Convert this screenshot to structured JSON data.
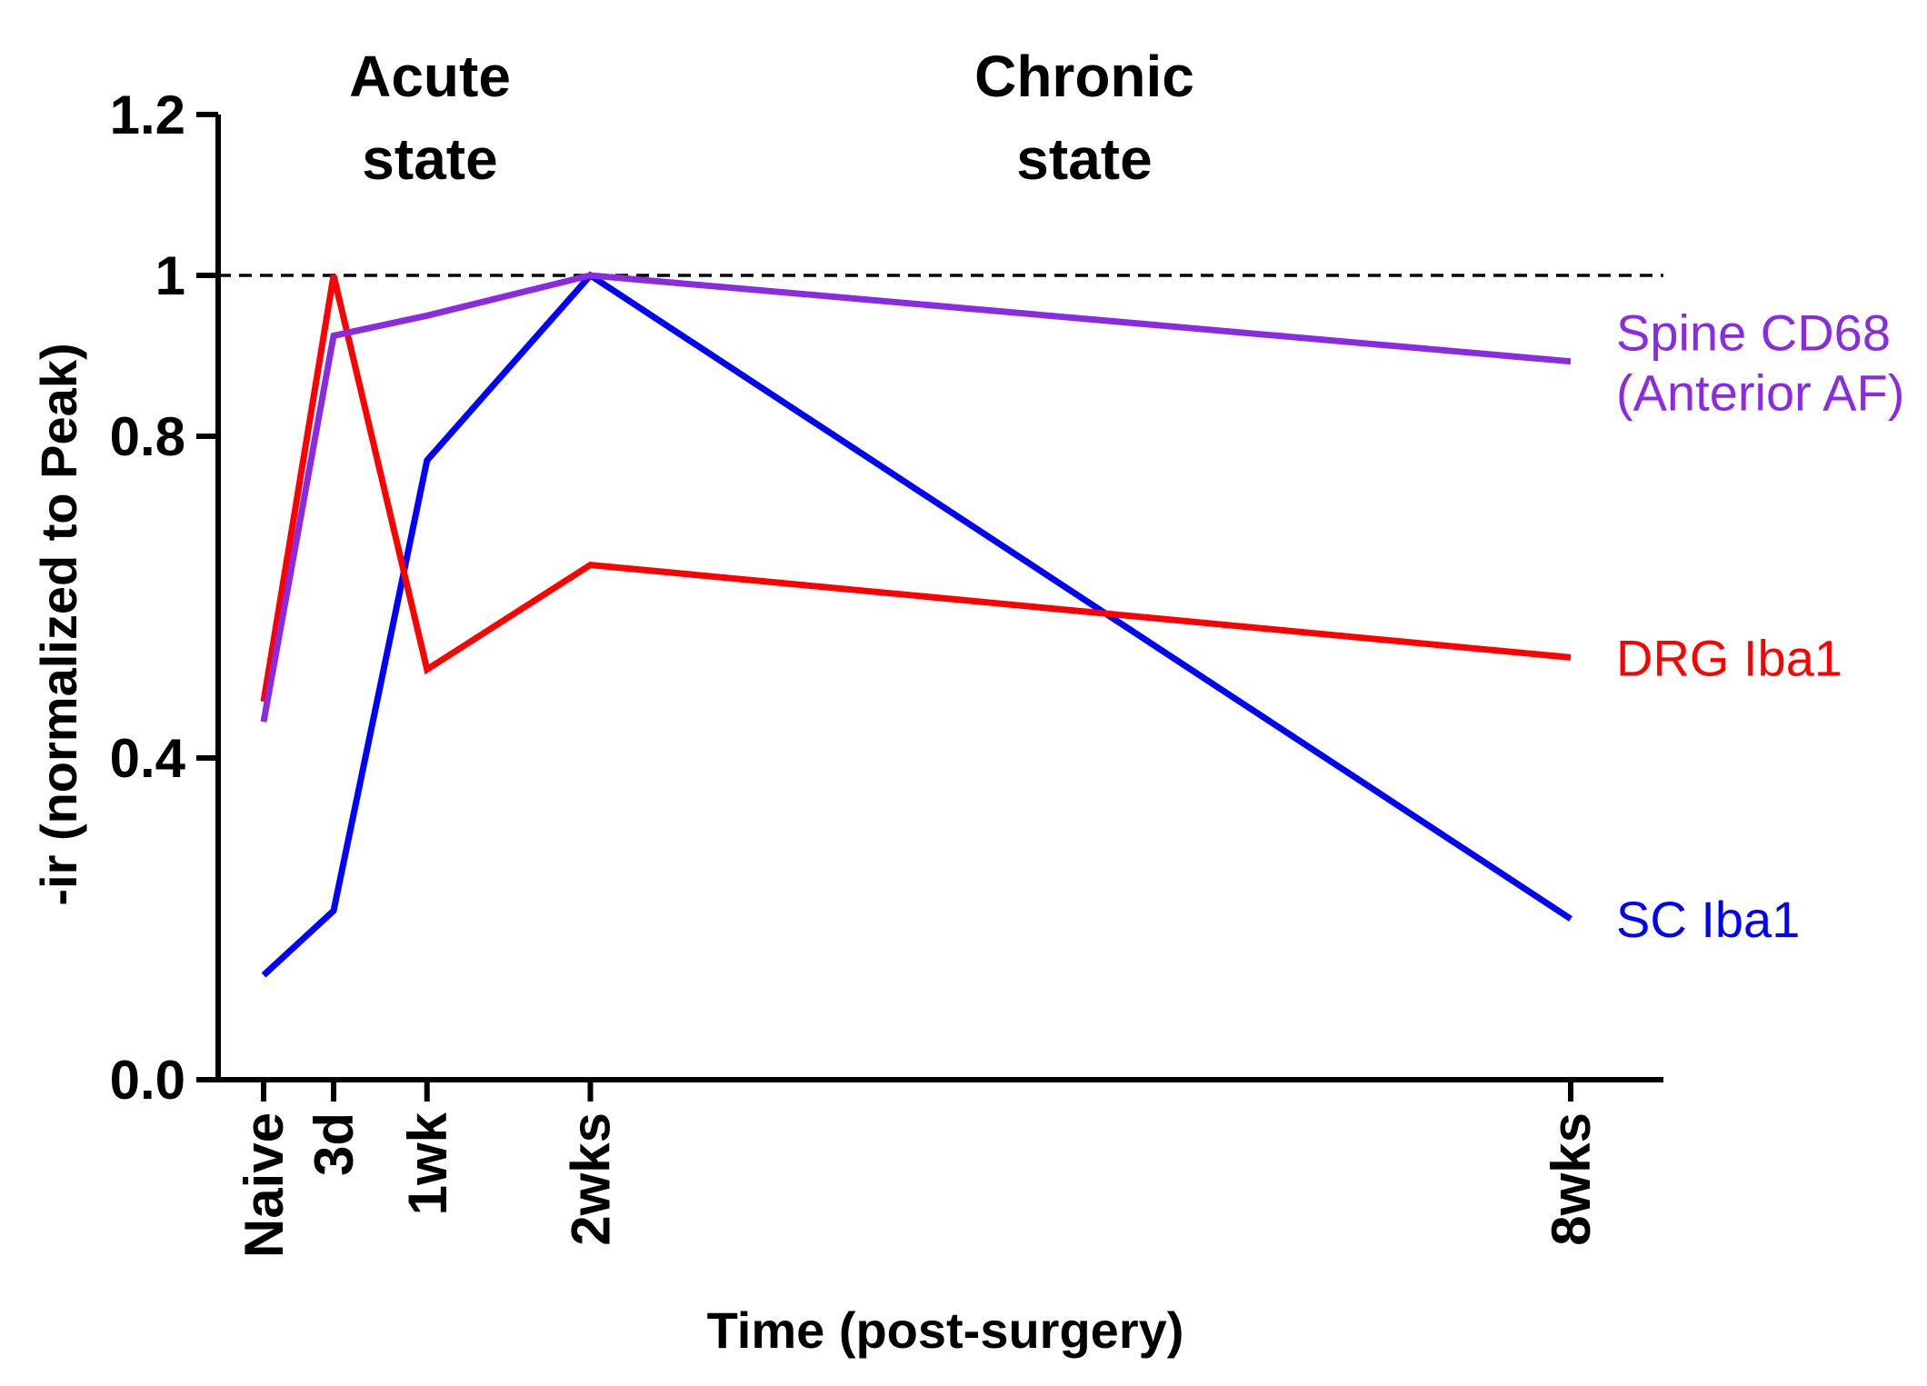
{
  "chart_data": {
    "type": "line",
    "x": [
      "Naive",
      "3d",
      "1wk",
      "2wks",
      "8wks"
    ],
    "x_days": [
      0,
      3,
      7,
      14,
      56
    ],
    "xlabel": "Time (post-surgery)",
    "ylabel": "-ir (normalized to Peak)",
    "y_ticks": [
      "0.0",
      "0.4",
      "0.8",
      "1",
      "1.2"
    ],
    "ylim": [
      0,
      1.2
    ],
    "reference_line": {
      "y": 1.0,
      "style": "dashed"
    },
    "phases": [
      {
        "label_lines": [
          "Acute",
          "state"
        ]
      },
      {
        "label_lines": [
          "Chronic",
          "state"
        ]
      }
    ],
    "series": [
      {
        "name": "SC Iba1",
        "color": "#0000ff",
        "values": [
          0.13,
          0.21,
          0.77,
          1.0,
          0.2
        ]
      },
      {
        "name": "DRG Iba1",
        "color": "#ff0000",
        "values": [
          0.47,
          1.0,
          0.51,
          0.64,
          0.525
        ]
      },
      {
        "name": "Spine CD68\n(Anterior AF)",
        "label_lines": [
          "Spine CD68",
          "(Anterior AF)"
        ],
        "color": "#8a2be2",
        "values": [
          0.445,
          0.925,
          0.95,
          1.0,
          0.893
        ]
      }
    ],
    "grid": false,
    "legend": "right, labels beside line ends"
  }
}
